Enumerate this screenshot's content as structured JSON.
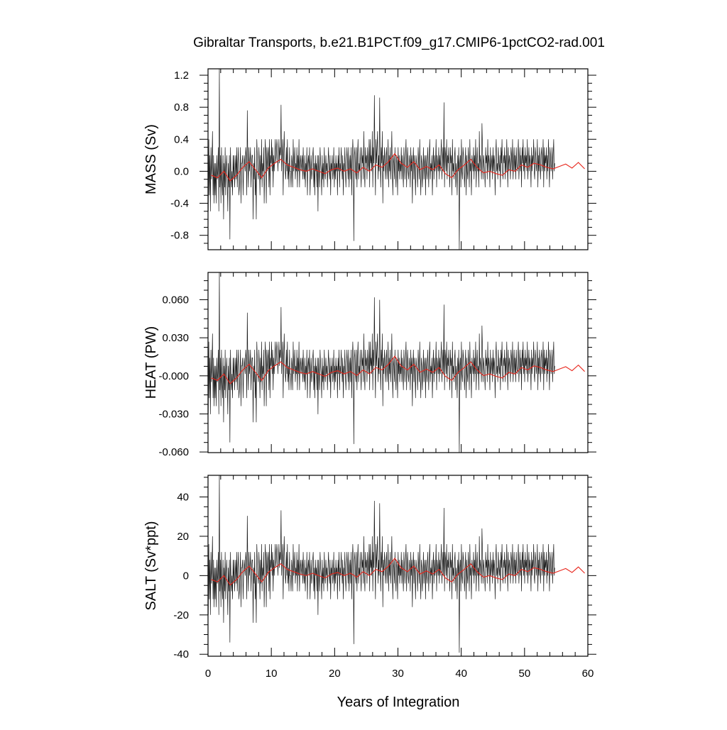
{
  "title": "Gibraltar Transports, b.e21.B1PCT.f09_g17.CMIP6-1pctCO2-rad.001",
  "xlabel": "Years of Integration",
  "colors": {
    "monthly": "#1a1a1a",
    "annual": "#e8251b",
    "axes": "#000000"
  },
  "chart_data": [
    {
      "type": "line",
      "panel": "mass",
      "ylabel": "MASS (Sv)",
      "xlim": [
        0,
        60
      ],
      "ylim": [
        -0.98,
        1.28
      ],
      "x_ticks": [
        "0",
        "10",
        "20",
        "30",
        "40",
        "50",
        "60"
      ],
      "y_tick_values": [
        1.2,
        0.8,
        0.4,
        0.0,
        -0.4,
        -0.8
      ],
      "y_tick_labels": [
        "1.2",
        "0.8",
        "0.4",
        "0.0",
        "-0.4",
        "-0.8"
      ],
      "series": [
        {
          "kind": "monthly",
          "x_start": 0.0417,
          "x_step": 0.0833,
          "values": [
            -0.5,
            0.4,
            -0.3,
            0.2,
            -0.5,
            0.3,
            -0.1,
            0.1,
            0.5,
            -0.3,
            0.2,
            -0.4,
            0.1,
            -0.3,
            0.1,
            -0.4,
            0.2,
            -0.1,
            0.0,
            0.3,
            -0.5,
            1.28,
            -0.2,
            0.2,
            -0.4,
            0.3,
            -0.1,
            -0.3,
            0.2,
            -0.6,
            0.1,
            -0.2,
            0.3,
            -0.3,
            0.0,
            0.2,
            -0.1,
            -0.5,
            0.1,
            -0.2,
            0.2,
            -0.85,
            0.3,
            0.0,
            -0.2,
            0.0,
            -0.3,
            0.2,
            -0.1,
            0.2,
            -0.2,
            0.0,
            0.2,
            -0.1,
            0.3,
            -0.2,
            0.1,
            0.3,
            -0.3,
            -0.2,
            0.0,
            0.3,
            -0.4,
            0.1,
            0.1,
            0.2,
            -0.3,
            0.0,
            0.2,
            0.1,
            0.0,
            0.3,
            0.2,
            -0.3,
            0.76,
            0.1,
            -0.2,
            0.3,
            0.0,
            0.1,
            0.3,
            -0.2,
            0.1,
            0.2,
            0.2,
            -0.6,
            0.1,
            -0.1,
            0.3,
            -0.3,
            0.0,
            -0.6,
            0.4,
            0.2,
            0.0,
            -0.1,
            0.3,
            0.1,
            -0.3,
            0.2,
            -0.1,
            0.4,
            -0.2,
            0.1,
            0.0,
            0.3,
            -0.4,
            0.0,
            0.4,
            0.2,
            -0.4,
            0.3,
            0.0,
            0.2,
            0.3,
            -0.2,
            0.4,
            -0.3,
            0.2,
            0.1,
            0.4,
            0.0,
            0.3,
            -0.2,
            0.2,
            0.0,
            0.2,
            0.4,
            0.1,
            0.2,
            0.4,
            0.3,
            0.0,
            0.2,
            0.4,
            0.1,
            0.3,
            0.2,
            0.83,
            0.0,
            0.2,
            0.4,
            -0.3,
            0.2,
            0.5,
            0.1,
            0.0,
            -0.1,
            0.3,
            0.0,
            0.4,
            -0.1,
            0.1,
            -0.2,
            0.3,
            0.0,
            0.0,
            -0.2,
            0.2,
            0.1,
            -0.2,
            0.4,
            0.0,
            0.1,
            0.3,
            -0.1,
            0.1,
            0.0,
            0.3,
            -0.2,
            0.2,
            0.0,
            0.4,
            -0.2,
            0.1,
            0.2,
            0.0,
            0.1,
            0.2,
            -0.1,
            0.3,
            0.0,
            -0.1,
            0.2,
            -0.2,
            0.1,
            0.0,
            0.3,
            -0.3,
            0.1,
            0.2,
            0.0,
            0.3,
            -0.3,
            0.0,
            0.2,
            -0.1,
            0.0,
            0.2,
            0.3,
            -0.2,
            0.1,
            -0.3,
            0.2,
            0.0,
            0.1,
            -0.2,
            0.2,
            -0.5,
            0.2,
            0.0,
            -0.2,
            0.3,
            0.1,
            0.0,
            -0.3,
            0.2,
            -0.1,
            0.1,
            -0.2,
            0.3,
            0.0,
            -0.1,
            0.2,
            0.0,
            0.1,
            -0.2,
            0.1,
            0.3,
            0.0,
            -0.1,
            0.2,
            -0.3,
            0.1,
            0.0,
            0.2,
            -0.1,
            0.0,
            0.3,
            -0.2,
            0.1,
            -0.1,
            0.2,
            0.0,
            0.1,
            -0.3,
            0.2,
            0.0,
            0.3,
            -0.2,
            0.1,
            0.0,
            0.3,
            0.1,
            -0.1,
            0.2,
            -0.3,
            0.1,
            0.0,
            0.3,
            0.0,
            -0.2,
            0.1,
            0.3,
            0.1,
            -0.1,
            0.3,
            -0.2,
            0.1,
            0.2,
            -0.1,
            0.3,
            -0.3,
            0.1,
            0.4,
            0.2,
            -0.87,
            0.2,
            0.3,
            0.0,
            -0.1,
            0.3,
            -0.2,
            0.2,
            0.4,
            -0.1,
            0.1,
            0.0,
            0.3,
            0.0,
            -0.2,
            0.3,
            0.1,
            0.2,
            -0.1,
            0.5,
            0.0,
            -0.2,
            0.3,
            0.1,
            0.2,
            -0.1,
            0.3,
            0.1,
            0.0,
            0.4,
            -0.2,
            0.4,
            0.1,
            0.2,
            0.0,
            0.5,
            -0.2,
            0.3,
            0.1,
            0.95,
            0.2,
            -0.3,
            0.4,
            0.1,
            0.3,
            0.5,
            -0.1,
            0.2,
            0.0,
            0.92,
            0.1,
            -0.2,
            0.3,
            0.1,
            0.5,
            -0.4,
            0.2,
            0.0,
            0.3,
            0.1,
            -0.1,
            0.2,
            0.3,
            -0.1,
            0.1,
            0.4,
            -0.2,
            0.2,
            0.0,
            0.3,
            -0.1,
            0.1,
            0.5,
            0.0,
            -0.3,
            0.2,
            0.1,
            -0.1,
            0.3,
            0.0,
            -0.2,
            0.2,
            0.1,
            -0.3,
            0.3,
            0.0,
            0.2,
            -0.1,
            0.1,
            0.0,
            0.3,
            -0.1,
            0.2,
            0.0,
            -0.2,
            0.3,
            0.1,
            -0.1,
            0.2,
            0.4,
            -0.2,
            0.1,
            0.3,
            0.0,
            -0.1,
            0.2,
            0.1,
            -0.2,
            0.3,
            0.0,
            0.2,
            -0.4,
            0.1,
            0.3,
            -0.1,
            0.2,
            0.0,
            -0.3,
            0.2,
            0.1,
            0.0,
            -0.2,
            0.3,
            0.1,
            -0.1,
            0.4,
            0.0,
            -0.3,
            0.2,
            0.1,
            -0.2,
            0.0,
            0.3,
            -0.1,
            0.1,
            0.2,
            -0.3,
            0.2,
            0.0,
            -0.1,
            0.3,
            0.1,
            -0.2,
            0.2,
            0.4,
            -0.1,
            0.1,
            0.0,
            0.2,
            -0.3,
            0.1,
            0.3,
            -0.1,
            0.2,
            0.0,
            0.1,
            0.4,
            -0.2,
            0.2,
            0.1,
            0.0,
            0.3,
            -0.1,
            0.2,
            0.0,
            0.2,
            0.4,
            -0.1,
            0.1,
            0.3,
            0.0,
            0.86,
            -0.2,
            0.3,
            0.2,
            0.0,
            0.4,
            -0.1,
            0.2,
            0.1,
            0.3,
            0.0,
            -0.2,
            0.3,
            0.1,
            0.2,
            -0.3,
            0.4,
            0.0,
            0.1,
            -0.1,
            0.2,
            0.3,
            -0.2,
            0.1,
            0.0,
            -0.3,
            0.2,
            0.0,
            0.3,
            -0.98,
            0.1,
            0.2,
            -0.2,
            0.4,
            0.0,
            -0.1,
            0.3,
            0.2,
            0.0,
            -0.2,
            0.1,
            0.3,
            -0.3,
            0.2,
            0.0,
            -0.1,
            0.3,
            0.1,
            -0.2,
            0.4,
            0.0,
            0.1,
            -0.3,
            0.2,
            0.1,
            0.0,
            0.3,
            -0.1,
            0.2,
            0.0,
            0.4,
            -0.2,
            0.1,
            0.3,
            0.0,
            0.1,
            -0.2,
            0.5,
            0.0,
            0.2,
            0.1,
            -0.1,
            0.6,
            0.3,
            -0.1,
            0.2,
            0.1,
            0.0,
            -0.2,
            0.3,
            0.1,
            0.2,
            -0.1,
            0.4,
            0.0,
            0.2,
            0.1,
            -0.2,
            0.3,
            0.0,
            0.1,
            0.2,
            -0.1,
            0.3,
            0.0,
            0.2,
            0.1,
            -0.3,
            0.2,
            0.4,
            0.0,
            0.1,
            -0.1,
            0.3,
            0.1,
            0.0,
            0.2,
            -0.2,
            0.3,
            0.1,
            0.4,
            0.0,
            -0.1,
            0.2,
            0.1,
            0.3,
            -0.1,
            0.2,
            0.0,
            0.4,
            0.1,
            -0.2,
            0.3,
            0.0,
            0.2,
            0.1,
            -0.1,
            0.3,
            0.2,
            0.0,
            0.4,
            -0.1,
            0.1,
            0.3,
            0.0,
            0.2,
            -0.1,
            0.3,
            0.1,
            0.0,
            0.2,
            0.4,
            -0.1,
            0.1,
            0.3,
            0.0,
            0.2,
            -0.2,
            0.3,
            0.1,
            0.4,
            0.0,
            0.2,
            -0.1,
            0.3,
            0.1,
            0.2,
            0.0,
            0.4,
            -0.1,
            0.1,
            0.3,
            0.0,
            0.2,
            0.1,
            -0.2,
            0.3,
            0.0,
            0.2,
            0.1,
            0.4,
            0.0,
            -0.1,
            0.3,
            0.2,
            0.0,
            0.1,
            0.4,
            -0.2,
            0.2,
            0.0,
            0.3,
            0.1,
            -0.1,
            0.2,
            0.3,
            0.0,
            0.1,
            0.4,
            -0.2,
            0.3,
            0.0,
            0.2,
            0.1,
            0.3,
            -0.1,
            0.2,
            0.0,
            0.4,
            0.1,
            -0.2,
            0.3,
            0.2,
            0.0,
            0.1,
            0.3,
            -0.1,
            0.2,
            0.4,
            0.0,
            0.1
          ]
        },
        {
          "kind": "annual",
          "x": [
            0.5,
            1.5,
            2.5,
            3.5,
            4.5,
            5.5,
            6.5,
            7.5,
            8.5,
            9.5,
            10.5,
            11.5,
            12.5,
            13.5,
            14.5,
            15.5,
            16.5,
            17.5,
            18.5,
            19.5,
            20.5,
            21.5,
            22.5,
            23.5,
            24.5,
            25.5,
            26.5,
            27.5,
            28.5,
            29.5,
            30.5,
            31.5,
            32.5,
            33.5,
            34.5,
            35.5,
            36.5,
            37.5,
            38.5,
            39.5,
            40.5,
            41.5,
            42.5,
            43.5,
            44.5,
            45.5,
            46.5,
            47.5,
            48.5,
            49.5,
            50.5,
            51.5,
            52.5,
            53.5,
            54.5,
            55.5,
            56.5,
            57.5,
            58.5,
            59.5
          ],
          "values": [
            -0.05,
            -0.08,
            0.0,
            -0.12,
            -0.05,
            0.05,
            0.12,
            0.02,
            -0.08,
            0.04,
            0.1,
            0.15,
            0.08,
            0.05,
            0.02,
            0.0,
            0.03,
            0.0,
            -0.03,
            0.02,
            0.04,
            0.0,
            0.03,
            -0.02,
            0.05,
            0.0,
            0.08,
            0.05,
            0.12,
            0.22,
            0.1,
            0.05,
            0.12,
            0.02,
            0.06,
            0.02,
            0.08,
            -0.03,
            -0.08,
            0.02,
            0.08,
            0.15,
            0.05,
            -0.02,
            0.0,
            -0.03,
            -0.05,
            0.02,
            0.0,
            0.08,
            0.05,
            0.1,
            0.08,
            0.05,
            0.03,
            0.06,
            0.09,
            0.04,
            0.11,
            0.03
          ]
        }
      ]
    },
    {
      "type": "line",
      "panel": "heat",
      "ylabel": "HEAT (PW)",
      "xlim": [
        0,
        60
      ],
      "ylim": [
        -0.0605,
        0.0815
      ],
      "x_ticks": [
        "0",
        "10",
        "20",
        "30",
        "40",
        "50",
        "60"
      ],
      "y_tick_values": [
        0.06,
        0.03,
        0.0,
        -0.03,
        -0.06
      ],
      "y_tick_labels": [
        "0.060",
        "0.030",
        "-0.000",
        "-0.030",
        "-0.060"
      ],
      "series": [
        {
          "kind": "monthly",
          "x_start": 0.0417,
          "x_step": 0.0833,
          "derived_from": "mass",
          "scale": 0.0635,
          "offset": 0.0015
        },
        {
          "kind": "annual",
          "derived_from": "mass",
          "scale": 0.0635,
          "offset": 0.0015
        }
      ]
    },
    {
      "type": "line",
      "panel": "salt",
      "ylabel": "SALT (Sv*ppt)",
      "xlim": [
        0,
        60
      ],
      "ylim": [
        -41,
        51
      ],
      "x_ticks": [
        "0",
        "10",
        "20",
        "30",
        "40",
        "50",
        "60"
      ],
      "y_tick_values": [
        40,
        20,
        0,
        -20,
        -40
      ],
      "y_tick_labels": [
        "40",
        "20",
        "0",
        "-20",
        "-40"
      ],
      "series": [
        {
          "kind": "monthly",
          "x_start": 0.0417,
          "x_step": 0.0833,
          "derived_from": "mass",
          "scale": 40.0,
          "offset": 0.0
        },
        {
          "kind": "annual",
          "derived_from": "mass",
          "scale": 40.0,
          "offset": 0.0
        }
      ]
    }
  ]
}
